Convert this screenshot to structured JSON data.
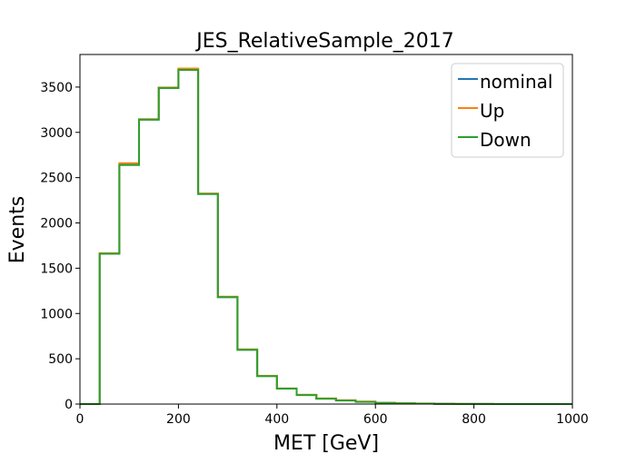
{
  "chart_data": {
    "type": "line",
    "title": "JES_RelativeSample_2017",
    "xlabel": "MET [GeV]",
    "ylabel": "Events",
    "xlim": [
      0,
      1000
    ],
    "ylim": [
      0,
      3860
    ],
    "xticks": [
      0,
      200,
      400,
      600,
      800,
      1000
    ],
    "yticks": [
      0,
      500,
      1000,
      1500,
      2000,
      2500,
      3000,
      3500
    ],
    "grid": false,
    "legend_position": "top-right",
    "bin_edges": [
      0,
      40,
      80,
      120,
      160,
      200,
      240,
      280,
      320,
      360,
      400,
      440,
      480,
      520,
      560,
      600,
      640,
      680,
      720,
      760,
      800,
      840,
      880,
      920,
      960,
      1000
    ],
    "series": [
      {
        "name": "nominal",
        "color": "#1f77b4",
        "values": [
          0,
          1660,
          2650,
          3140,
          3490,
          3695,
          2320,
          1180,
          600,
          310,
          170,
          100,
          60,
          40,
          25,
          12,
          8,
          5,
          2,
          1,
          1,
          0,
          0,
          0,
          0
        ]
      },
      {
        "name": "Up",
        "color": "#ff7f0e",
        "values": [
          0,
          1665,
          2660,
          3145,
          3495,
          3705,
          2325,
          1185,
          605,
          312,
          172,
          102,
          62,
          42,
          27,
          13,
          9,
          6,
          3,
          1,
          1,
          0,
          0,
          0,
          0
        ]
      },
      {
        "name": "Down",
        "color": "#2ca02c",
        "values": [
          0,
          1660,
          2640,
          3140,
          3490,
          3690,
          2320,
          1180,
          600,
          308,
          170,
          99,
          59,
          39,
          24,
          12,
          8,
          5,
          2,
          1,
          1,
          0,
          0,
          0,
          0
        ]
      }
    ]
  }
}
